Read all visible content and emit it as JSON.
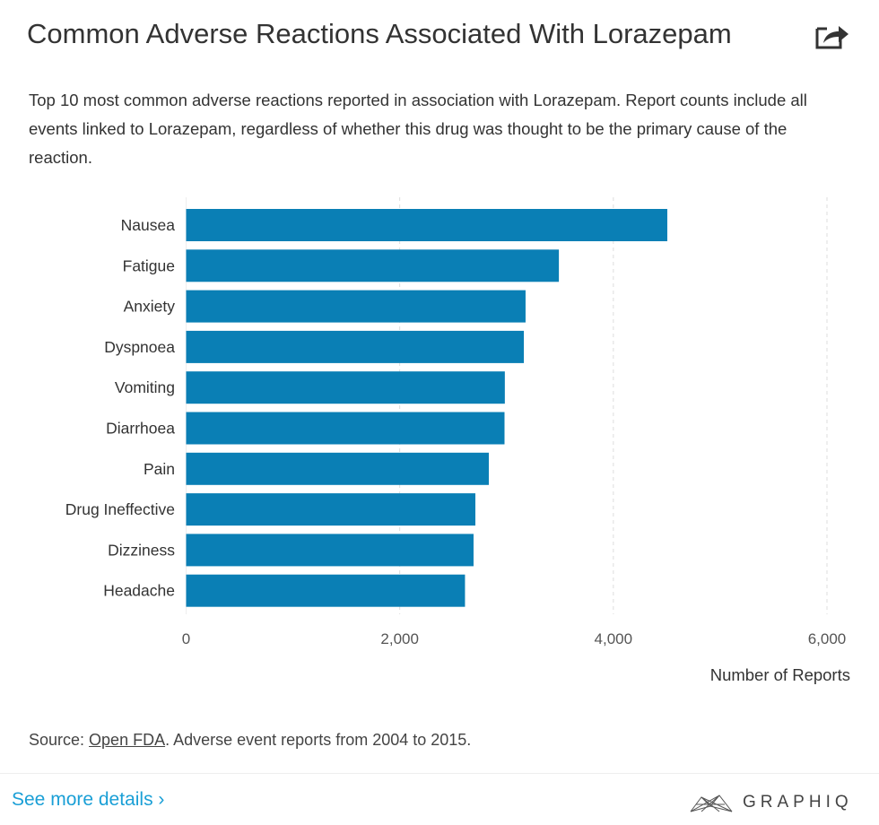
{
  "header": {
    "title": "Common Adverse Reactions Associated With Lorazepam",
    "share_icon": "share-icon",
    "subtitle": "Top 10 most common adverse reactions reported in association with Lorazepam. Report counts include all events linked to Lorazepam, regardless of whether this drug was thought to be the primary cause of the reaction."
  },
  "chart_data": {
    "type": "bar",
    "orientation": "horizontal",
    "categories": [
      "Nausea",
      "Fatigue",
      "Anxiety",
      "Dyspnoea",
      "Vomiting",
      "Diarrhoea",
      "Pain",
      "Drug Ineffective",
      "Dizziness",
      "Headache"
    ],
    "values": [
      4505,
      3490,
      3178,
      3162,
      2984,
      2981,
      2834,
      2708,
      2691,
      2611
    ],
    "xlabel": "Number of Reports",
    "xlim": [
      0,
      6000
    ],
    "xticks": [
      "0",
      "2,000",
      "4,000",
      "6,000"
    ],
    "grid": "vertical dashed",
    "bar_color": "#0a7fb5"
  },
  "footer": {
    "source_prefix": "Source: ",
    "source_link": "Open FDA",
    "source_suffix": ". Adverse event reports from 2004 to 2015.",
    "see_more": "See more details ›",
    "link_color": "#1a9fd6",
    "logo": "GRAPHIQ"
  }
}
